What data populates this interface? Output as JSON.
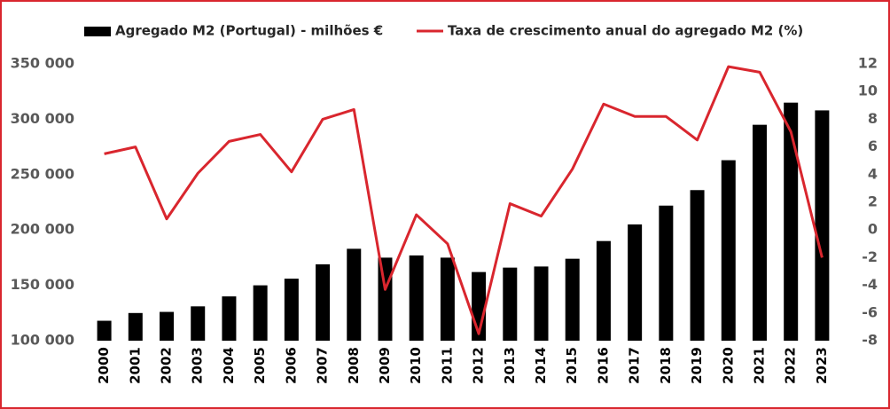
{
  "chart_data": {
    "type": "bar-line",
    "categories": [
      "2000",
      "2001",
      "2002",
      "2003",
      "2004",
      "2005",
      "2006",
      "2007",
      "2008",
      "2009",
      "2010",
      "2011",
      "2012",
      "2013",
      "2014",
      "2015",
      "2016",
      "2017",
      "2018",
      "2019",
      "2020",
      "2021",
      "2022",
      "2023"
    ],
    "series": [
      {
        "name": "Agregado M2 (Portugal) - milhões €",
        "type": "bar",
        "color": "#000000",
        "values": [
          118000,
          125000,
          126000,
          131000,
          140000,
          150000,
          156000,
          169000,
          183000,
          175000,
          177000,
          175000,
          162000,
          166000,
          167000,
          174000,
          190000,
          205000,
          222000,
          236000,
          263000,
          295000,
          315000,
          308000
        ]
      },
      {
        "name": "Taxa de crescimento anual do agregado M2 (%)",
        "type": "line",
        "axis": "y2",
        "color": "#d9262e",
        "values": [
          5.5,
          6.0,
          0.8,
          4.1,
          6.4,
          6.9,
          4.2,
          8.0,
          8.7,
          -4.3,
          1.1,
          -1.0,
          -7.5,
          1.9,
          1.0,
          4.4,
          9.1,
          8.2,
          8.2,
          6.5,
          11.8,
          11.4,
          7.1,
          -2.0
        ]
      }
    ],
    "ylim": [
      100000,
      350000
    ],
    "yticks": [
      {
        "value": 100000,
        "label": "100 000"
      },
      {
        "value": 150000,
        "label": "150 000"
      },
      {
        "value": 200000,
        "label": "200 000"
      },
      {
        "value": 250000,
        "label": "250 000"
      },
      {
        "value": 300000,
        "label": "300 000"
      },
      {
        "value": 350000,
        "label": "350 000"
      }
    ],
    "y2lim": [
      -8,
      12
    ],
    "y2ticks": [
      -8,
      -6,
      -4,
      -2,
      0,
      2,
      4,
      6,
      8,
      10,
      12
    ],
    "legend": "top"
  }
}
